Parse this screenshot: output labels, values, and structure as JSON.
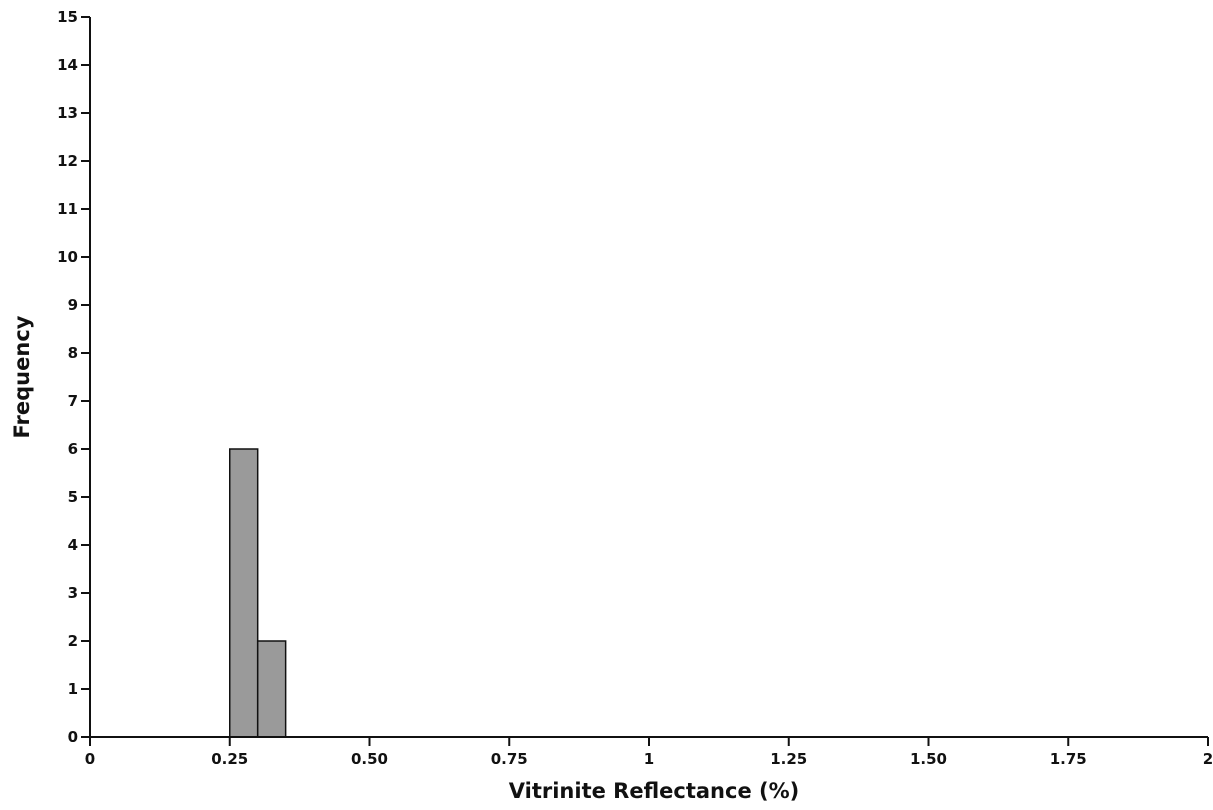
{
  "chart_data": {
    "type": "bar",
    "title": "",
    "xlabel": "Vitrinite Reflectance (%)",
    "ylabel": "Frequency",
    "xlim": [
      0,
      2
    ],
    "ylim": [
      0,
      15
    ],
    "bin_width": 0.05,
    "grid": false,
    "legend": "none",
    "x_ticks": [
      0,
      0.25,
      0.5,
      0.75,
      1,
      1.25,
      1.5,
      1.75,
      2
    ],
    "x_tick_labels": [
      "0",
      "0.25",
      "0.50",
      "0.75",
      "1",
      "1.25",
      "1.50",
      "1.75",
      "2"
    ],
    "y_ticks": [
      0,
      1,
      2,
      3,
      4,
      5,
      6,
      7,
      8,
      9,
      10,
      11,
      12,
      13,
      14,
      15
    ],
    "y_tick_labels": [
      "0",
      "1",
      "2",
      "3",
      "4",
      "5",
      "6",
      "7",
      "8",
      "9",
      "10",
      "11",
      "12",
      "13",
      "14",
      "15"
    ],
    "bins": [
      {
        "start": 0.25,
        "end": 0.3,
        "value": 6
      },
      {
        "start": 0.3,
        "end": 0.35,
        "value": 2
      }
    ],
    "colors": {
      "bar_fill": "#9a9a9a",
      "axis": "#111111",
      "background": "#ffffff"
    }
  }
}
